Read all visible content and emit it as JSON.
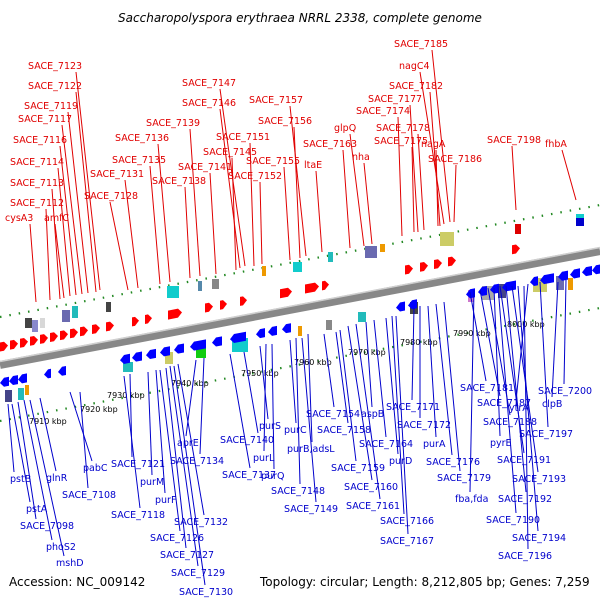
{
  "title": "Saccharopolyspora erythraea NRRL 2338, complete genome",
  "accession": "Accession: NC_009142",
  "summary": "Topology: circular; Length: 8,212,805 bp; Genes: 7,259",
  "colors": {
    "forward": "#ff0000",
    "reverse": "#0000ff",
    "backbone": "#888888",
    "dots": "#228822",
    "label_forward": "#e00000",
    "label_reverse": "#0000cc"
  },
  "tick_labels": [
    "7910 kbp",
    "7920 kbp",
    "7930 kbp",
    "7940 kbp",
    "7950 kbp",
    "7960 kbp",
    "7970 kbp",
    "7980 kbp",
    "7990 kbp",
    "8000 kbp"
  ],
  "forward_genes": [
    "cysA3",
    "SACE_7112",
    "amfC",
    "SACE_7113",
    "SACE_7114",
    "SACE_7116",
    "SACE_7117",
    "SACE_7119",
    "SACE_7122",
    "SACE_7123",
    "SACE_7128",
    "SACE_7131",
    "SACE_7135",
    "SACE_7136",
    "SACE_7138",
    "SACE_7139",
    "SACE_7141",
    "SACE_7145",
    "SACE_7146",
    "SACE_7147",
    "SACE_7151",
    "SACE_7152",
    "SACE_7155",
    "SACE_7156",
    "SACE_7157",
    "ltaE",
    "SACE_7163",
    "glpQ",
    "nha",
    "SACE_7174",
    "SACE_7175",
    "SACE_7177",
    "SACE_7178",
    "nagA",
    "SACE_7182",
    "SACE_7186",
    "nagC4",
    "SACE_7185",
    "SACE_7198",
    "fhbA"
  ],
  "reverse_genes": [
    "pstB",
    "pstA",
    "SACE_7098",
    "phoS2",
    "mshD",
    "glnR",
    "pabC",
    "SACE_7108",
    "SACE_7118",
    "SACE_7121",
    "purM",
    "purF",
    "SACE_7126",
    "SACE_7127",
    "SACE_7129",
    "SACE_7130",
    "SACE_7132",
    "aprE",
    "SACE_7134",
    "SACE_7137",
    "SACE_7140",
    "purS",
    "purL",
    "purQ",
    "purC",
    "SACE_7148",
    "SACE_7149",
    "purB,adsL",
    "SACE_7154",
    "SACE_7158",
    "SACE_7159",
    "SACE_7160",
    "SACE_7161",
    "aspB",
    "SACE_7164",
    "purD",
    "SACE_7166",
    "SACE_7167",
    "SACE_7171",
    "SACE_7172",
    "purA",
    "SACE_7176",
    "SACE_7179",
    "SACE_7181",
    "fba,fda",
    "SACE_7187",
    "SACE_7188",
    "pyrE",
    "SACE_7190",
    "SACE_7191",
    "SACE_7192",
    "SACE_7193",
    "SACE_7194",
    "SACE_7196",
    "ytrA",
    "SACE_7197",
    "clpB",
    "SACE_7200"
  ]
}
